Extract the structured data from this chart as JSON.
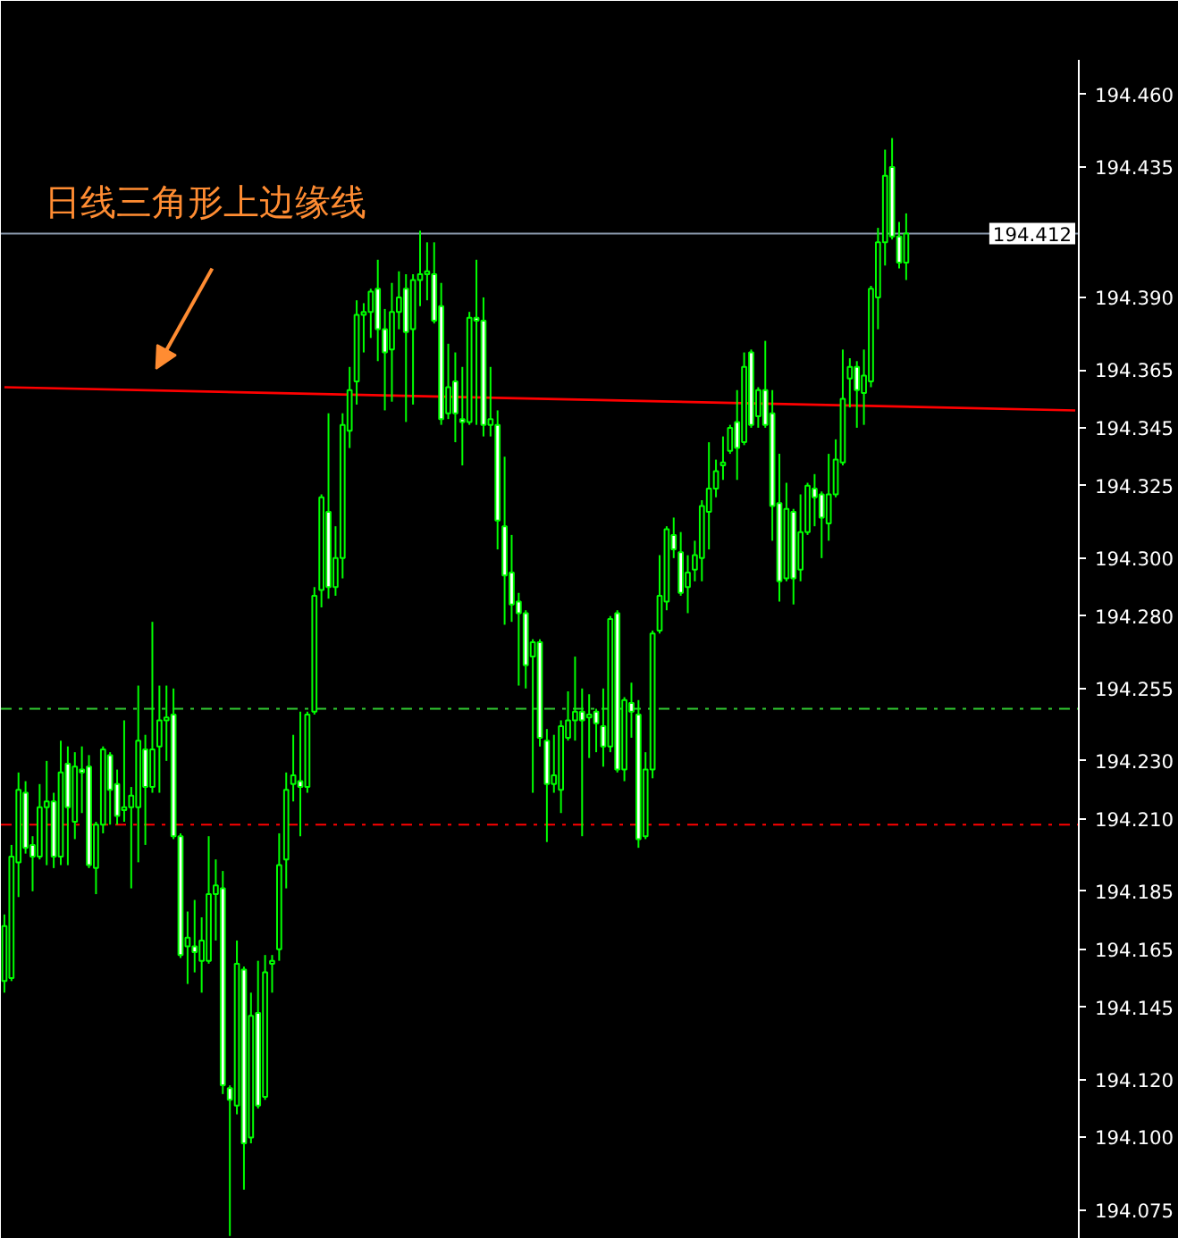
{
  "chart_data": {
    "type": "candlestick",
    "color": "#00ff00",
    "annotations": [
      "日线三角形上边缘线"
    ],
    "categories": [
      null,
      null,
      null,
      null,
      null,
      null,
      null,
      null,
      null,
      null,
      null,
      null,
      null,
      null,
      null,
      null,
      null,
      null,
      null,
      null,
      null,
      null,
      null,
      null,
      null,
      null,
      null,
      null,
      null,
      null,
      null,
      null,
      null,
      null,
      null,
      null,
      null,
      null,
      null,
      null,
      null,
      null,
      null,
      null,
      null,
      null,
      null,
      null,
      null,
      null,
      null,
      null,
      null,
      null,
      null,
      null,
      null,
      null,
      null,
      null,
      null,
      null,
      null,
      null,
      null,
      null,
      null,
      null,
      null,
      null,
      null,
      null,
      null,
      null,
      null,
      null,
      null,
      null,
      null,
      null,
      null,
      null,
      null,
      null,
      null,
      null,
      null,
      null,
      null,
      null,
      null,
      null,
      null,
      null,
      null,
      null,
      null,
      null,
      null,
      null,
      null,
      null,
      null,
      null,
      null,
      null,
      null,
      null,
      null,
      null,
      null,
      null,
      null,
      null,
      null,
      null,
      null,
      null,
      null,
      null,
      null,
      null,
      null,
      null,
      null,
      null,
      null,
      null,
      null,
      null,
      null,
      null,
      null,
      null,
      null,
      null,
      null,
      null,
      null,
      null,
      null,
      null,
      null,
      null,
      null,
      null,
      null,
      null,
      null,
      null,
      null,
      null,
      null
    ],
    "ohlc": [
      [
        194.154,
        194.177,
        194.15,
        194.173
      ],
      [
        194.155,
        194.201,
        194.154,
        194.197
      ],
      [
        194.195,
        194.226,
        194.183,
        194.22
      ],
      [
        194.219,
        194.223,
        194.198,
        194.2
      ],
      [
        194.201,
        194.204,
        194.185,
        194.197
      ],
      [
        194.197,
        194.222,
        194.196,
        194.214
      ],
      [
        194.214,
        194.23,
        194.194,
        194.216
      ],
      [
        194.216,
        194.219,
        194.193,
        194.197
      ],
      [
        194.197,
        194.237,
        194.194,
        194.226
      ],
      [
        194.229,
        194.235,
        194.194,
        194.214
      ],
      [
        194.209,
        194.233,
        194.203,
        194.228
      ],
      [
        194.227,
        194.235,
        194.212,
        194.226
      ],
      [
        194.228,
        194.232,
        194.193,
        194.194
      ],
      [
        194.193,
        194.209,
        194.184,
        194.208
      ],
      [
        194.208,
        194.235,
        194.205,
        194.234
      ],
      [
        194.232,
        194.233,
        194.208,
        194.22
      ],
      [
        194.222,
        194.227,
        194.208,
        194.211
      ],
      [
        194.213,
        194.244,
        194.209,
        194.214
      ],
      [
        194.214,
        194.221,
        194.186,
        194.218
      ],
      [
        194.214,
        194.256,
        194.195,
        194.237
      ],
      [
        194.234,
        194.239,
        194.201,
        194.221
      ],
      [
        194.221,
        194.278,
        194.219,
        194.234
      ],
      [
        194.235,
        194.256,
        194.219,
        194.244
      ],
      [
        194.244,
        194.256,
        194.23,
        194.245
      ],
      [
        194.246,
        194.255,
        194.203,
        194.204
      ],
      [
        194.204,
        194.205,
        194.162,
        194.163
      ],
      [
        194.166,
        194.178,
        194.153,
        194.169
      ],
      [
        194.166,
        194.182,
        194.157,
        194.164
      ],
      [
        194.161,
        194.176,
        194.15,
        194.168
      ],
      [
        194.161,
        194.204,
        194.16,
        194.184
      ],
      [
        194.184,
        194.196,
        194.168,
        194.187
      ],
      [
        194.186,
        194.192,
        194.115,
        194.118
      ],
      [
        194.117,
        194.118,
        194.066,
        194.113
      ],
      [
        194.111,
        194.168,
        194.108,
        194.16
      ],
      [
        194.158,
        194.159,
        194.082,
        194.098
      ],
      [
        194.1,
        194.15,
        194.098,
        194.142
      ],
      [
        194.143,
        194.161,
        194.11,
        194.111
      ],
      [
        194.114,
        194.163,
        194.113,
        194.157
      ],
      [
        194.16,
        194.163,
        194.15,
        194.161
      ],
      [
        194.165,
        194.205,
        194.161,
        194.194
      ],
      [
        194.196,
        194.226,
        194.186,
        194.22
      ],
      [
        194.222,
        194.239,
        194.216,
        194.225
      ],
      [
        194.223,
        194.247,
        194.204,
        194.221
      ],
      [
        194.221,
        194.247,
        194.219,
        194.246
      ],
      [
        194.247,
        194.29,
        194.246,
        194.287
      ],
      [
        194.289,
        194.322,
        194.283,
        194.321
      ],
      [
        194.316,
        194.35,
        194.286,
        194.29
      ],
      [
        194.29,
        194.311,
        194.287,
        194.3
      ],
      [
        194.3,
        194.35,
        194.293,
        194.346
      ],
      [
        194.344,
        194.366,
        194.338,
        194.358
      ],
      [
        194.361,
        194.389,
        194.353,
        194.384
      ],
      [
        194.384,
        194.388,
        194.371,
        194.385
      ],
      [
        194.385,
        194.393,
        194.376,
        194.392
      ],
      [
        194.393,
        194.403,
        194.368,
        194.379
      ],
      [
        194.379,
        194.386,
        194.351,
        194.371
      ],
      [
        194.372,
        194.395,
        194.354,
        194.385
      ],
      [
        194.385,
        194.399,
        194.379,
        194.39
      ],
      [
        194.393,
        194.398,
        194.347,
        194.378
      ],
      [
        194.379,
        194.398,
        194.353,
        194.396
      ],
      [
        194.396,
        194.413,
        194.387,
        194.398
      ],
      [
        194.398,
        194.409,
        194.389,
        194.399
      ],
      [
        194.398,
        194.409,
        194.381,
        194.382
      ],
      [
        194.387,
        194.395,
        194.346,
        194.348
      ],
      [
        194.35,
        194.374,
        194.348,
        194.359
      ],
      [
        194.361,
        194.371,
        194.34,
        194.35
      ],
      [
        194.348,
        194.366,
        194.332,
        194.347
      ],
      [
        194.347,
        194.385,
        194.346,
        194.383
      ],
      [
        194.383,
        194.403,
        194.346,
        194.382
      ],
      [
        194.382,
        194.39,
        194.342,
        194.346
      ],
      [
        194.346,
        194.366,
        194.342,
        194.348
      ],
      [
        194.346,
        194.351,
        194.303,
        194.313
      ],
      [
        194.311,
        194.335,
        194.277,
        194.294
      ],
      [
        194.295,
        194.308,
        194.278,
        194.284
      ],
      [
        194.285,
        194.288,
        194.256,
        194.281
      ],
      [
        194.281,
        194.282,
        194.255,
        194.263
      ],
      [
        194.266,
        194.272,
        194.219,
        194.271
      ],
      [
        194.271,
        194.272,
        194.235,
        194.238
      ],
      [
        194.237,
        194.241,
        194.202,
        194.222
      ],
      [
        194.222,
        194.239,
        194.219,
        194.225
      ],
      [
        194.22,
        194.244,
        194.212,
        194.242
      ],
      [
        194.238,
        194.254,
        194.237,
        194.244
      ],
      [
        194.244,
        194.266,
        194.237,
        194.247
      ],
      [
        194.247,
        194.255,
        194.204,
        194.244
      ],
      [
        194.245,
        194.253,
        194.231,
        194.246
      ],
      [
        194.247,
        194.248,
        194.233,
        194.243
      ],
      [
        194.242,
        194.255,
        194.228,
        194.235
      ],
      [
        194.235,
        194.28,
        194.233,
        194.279
      ],
      [
        194.281,
        194.282,
        194.226,
        194.227
      ],
      [
        194.227,
        194.252,
        194.223,
        194.251
      ],
      [
        194.25,
        194.257,
        194.238,
        194.247
      ],
      [
        194.246,
        194.251,
        194.2,
        194.203
      ],
      [
        194.204,
        194.233,
        194.203,
        194.227
      ],
      [
        194.227,
        194.275,
        194.224,
        194.274
      ],
      [
        194.275,
        194.301,
        194.274,
        194.287
      ],
      [
        194.285,
        194.311,
        194.282,
        194.31
      ],
      [
        194.308,
        194.314,
        194.3,
        194.303
      ],
      [
        194.302,
        194.309,
        194.287,
        194.288
      ],
      [
        194.29,
        194.301,
        194.281,
        194.295
      ],
      [
        194.296,
        194.306,
        194.292,
        194.301
      ],
      [
        194.3,
        194.32,
        194.292,
        194.318
      ],
      [
        194.316,
        194.34,
        194.303,
        194.324
      ],
      [
        194.324,
        194.334,
        194.321,
        194.33
      ],
      [
        194.332,
        194.342,
        194.327,
        194.333
      ],
      [
        194.337,
        194.346,
        194.336,
        194.345
      ],
      [
        194.347,
        194.358,
        194.327,
        194.338
      ],
      [
        194.34,
        194.371,
        194.339,
        194.366
      ],
      [
        194.371,
        194.372,
        194.345,
        194.346
      ],
      [
        194.349,
        194.359,
        194.345,
        194.358
      ],
      [
        194.358,
        194.375,
        194.345,
        194.346
      ],
      [
        194.35,
        194.358,
        194.306,
        194.318
      ],
      [
        194.319,
        194.336,
        194.285,
        194.292
      ],
      [
        194.293,
        194.326,
        194.292,
        194.317
      ],
      [
        194.316,
        194.317,
        194.284,
        194.293
      ],
      [
        194.296,
        194.322,
        194.292,
        194.309
      ],
      [
        194.309,
        194.326,
        194.308,
        194.325
      ],
      [
        194.324,
        194.329,
        194.311,
        194.321
      ],
      [
        194.322,
        194.323,
        194.3,
        194.314
      ],
      [
        194.312,
        194.336,
        194.306,
        194.322
      ],
      [
        194.322,
        194.341,
        194.321,
        194.334
      ],
      [
        194.333,
        194.372,
        194.332,
        194.355
      ],
      [
        194.362,
        194.369,
        194.352,
        194.366
      ],
      [
        194.366,
        194.368,
        194.345,
        194.358
      ],
      [
        194.357,
        194.372,
        194.346,
        194.363
      ],
      [
        194.361,
        194.394,
        194.359,
        194.393
      ],
      [
        194.39,
        194.414,
        194.379,
        194.409
      ],
      [
        194.409,
        194.441,
        194.401,
        194.432
      ],
      [
        194.435,
        194.445,
        194.41,
        194.411
      ],
      [
        194.411,
        194.416,
        194.4,
        194.402
      ],
      [
        194.402,
        194.419,
        194.396,
        194.412
      ],
      null,
      null,
      null,
      null,
      null,
      null,
      null,
      null,
      null,
      null,
      null,
      null,
      null,
      null,
      null,
      null,
      null,
      null,
      null,
      null,
      null,
      null,
      null,
      null
    ],
    "series": [
      {
        "type": "line",
        "color": "#ff0000",
        "values": [
          194.359,
          null,
          null,
          null,
          null,
          null,
          null,
          null,
          null,
          null,
          null,
          null,
          null,
          null,
          null,
          null,
          null,
          null,
          null,
          null,
          null,
          null,
          null,
          null,
          null,
          null,
          null,
          null,
          null,
          null,
          null,
          null,
          null,
          null,
          null,
          null,
          null,
          null,
          null,
          null,
          null,
          null,
          null,
          null,
          null,
          null,
          null,
          null,
          null,
          null,
          null,
          null,
          null,
          null,
          null,
          null,
          null,
          null,
          null,
          null,
          null,
          null,
          null,
          null,
          null,
          null,
          null,
          null,
          null,
          null,
          null,
          null,
          null,
          null,
          null,
          null,
          null,
          null,
          null,
          null,
          null,
          null,
          null,
          null,
          null,
          null,
          null,
          null,
          null,
          null,
          null,
          null,
          null,
          null,
          null,
          null,
          null,
          null,
          null,
          null,
          null,
          null,
          null,
          null,
          null,
          null,
          null,
          null,
          null,
          null,
          null,
          null,
          null,
          null,
          null,
          null,
          null,
          null,
          null,
          null,
          null,
          null,
          null,
          null,
          null,
          null,
          null,
          null,
          null,
          null,
          null,
          null,
          null,
          null,
          null,
          null,
          null,
          null,
          null,
          null,
          null,
          null,
          null,
          null,
          null,
          null,
          null,
          null,
          null,
          null,
          null,
          null,
          194.351
        ]
      }
    ],
    "ylim": [
      194.065,
      194.472
    ],
    "yticks": [
      {
        "value": 194.46,
        "label": "194.460"
      },
      {
        "value": 194.435,
        "label": "194.435"
      },
      {
        "value": 194.39,
        "label": "194.390"
      },
      {
        "value": 194.365,
        "label": "194.365"
      },
      {
        "value": 194.345,
        "label": "194.345"
      },
      {
        "value": 194.325,
        "label": "194.325"
      },
      {
        "value": 194.3,
        "label": "194.300"
      },
      {
        "value": 194.28,
        "label": "194.280"
      },
      {
        "value": 194.255,
        "label": "194.255"
      },
      {
        "value": 194.23,
        "label": "194.230"
      },
      {
        "value": 194.21,
        "label": "194.210"
      },
      {
        "value": 194.185,
        "label": "194.185"
      },
      {
        "value": 194.165,
        "label": "194.165"
      },
      {
        "value": 194.145,
        "label": "194.145"
      },
      {
        "value": 194.12,
        "label": "194.120"
      },
      {
        "value": 194.1,
        "label": "194.100"
      },
      {
        "value": 194.075,
        "label": "194.075"
      }
    ],
    "ref_lines": [
      {
        "axis": "y",
        "value": 194.412,
        "label": "194.412",
        "color": "#8a99ac",
        "line_style": "solid"
      },
      {
        "axis": "y",
        "value": 194.248,
        "color": "#32cd32",
        "line_style": "dashdot"
      },
      {
        "axis": "y",
        "value": 194.208,
        "color": "#ff0000",
        "line_style": "dashdot"
      }
    ],
    "tick_labels": "y"
  }
}
